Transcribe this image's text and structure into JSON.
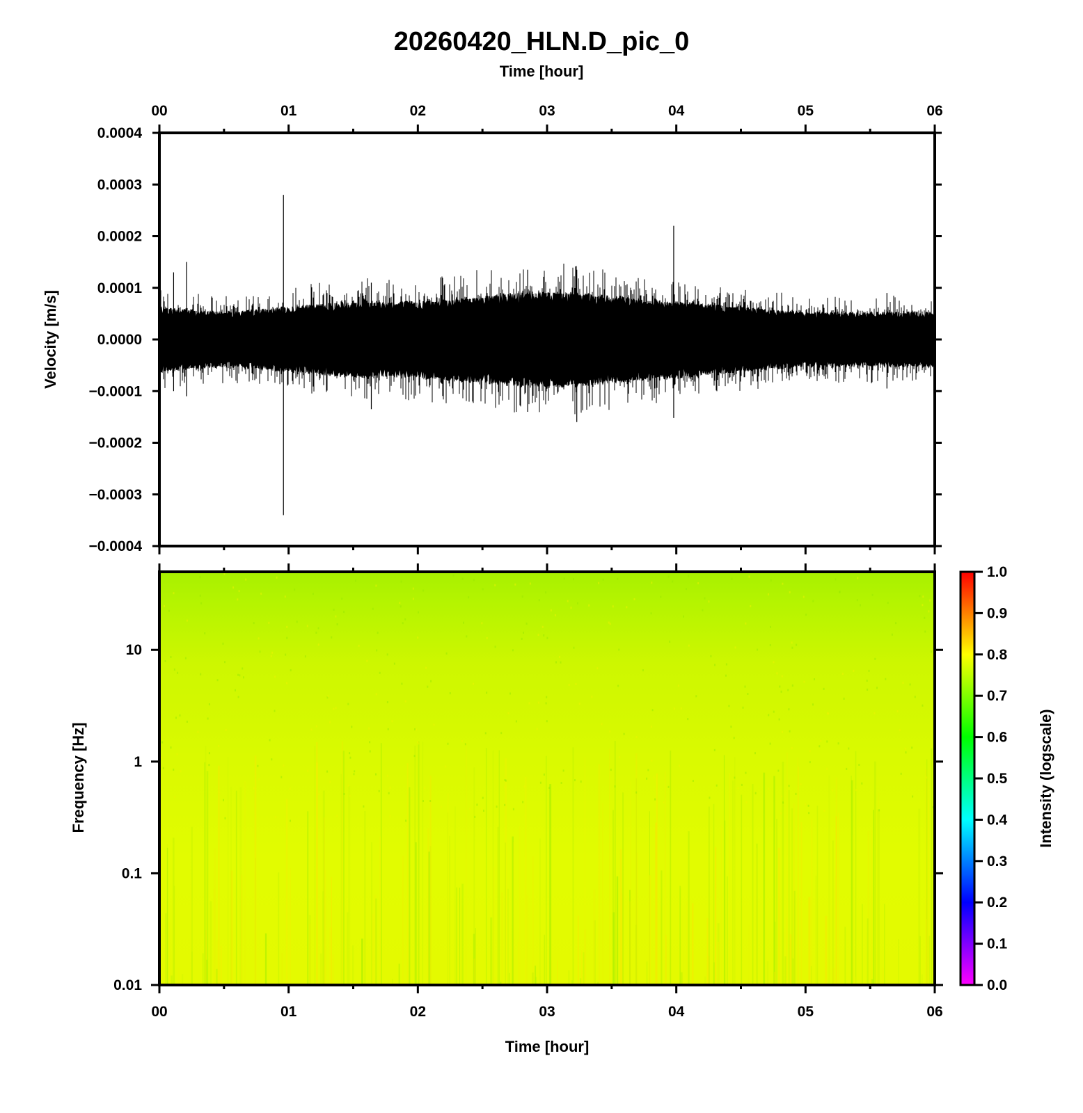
{
  "chart_data": [
    {
      "type": "line",
      "panel": "waveform",
      "title": "20260420_HLN.D_pic_0",
      "xlabel": "Time [hour]",
      "ylabel": "Velocity [m/s]",
      "xlim": [
        0,
        6
      ],
      "ylim": [
        -0.0004,
        0.0004
      ],
      "x_ticks": [
        "00",
        "01",
        "02",
        "03",
        "04",
        "05",
        "06"
      ],
      "y_ticks": [
        "0.0004",
        "0.0003",
        "0.0002",
        "0.0001",
        "0.0000",
        "−0.0001",
        "−0.0002",
        "−0.0003",
        "−0.0004"
      ],
      "envelope": {
        "x": [
          0.0,
          0.5,
          1.0,
          1.5,
          2.0,
          2.5,
          3.0,
          3.5,
          4.0,
          4.5,
          5.0,
          5.5,
          6.0
        ],
        "amplitude": [
          6e-05,
          5e-05,
          6e-05,
          7e-05,
          7e-05,
          8e-05,
          9e-05,
          8e-05,
          7e-05,
          6e-05,
          5e-05,
          5e-05,
          5e-05
        ]
      },
      "spikes": [
        {
          "x": 0.96,
          "max": 0.00028,
          "min": -0.00034
        },
        {
          "x": 3.98,
          "max": 0.00022,
          "min": -0.000152
        },
        {
          "x": 0.21,
          "max": 0.00015,
          "min": -0.00011
        },
        {
          "x": 3.23,
          "max": 0.000135,
          "min": -0.00016
        },
        {
          "x": 2.85,
          "max": 0.000135,
          "min": -0.00014
        },
        {
          "x": 1.64,
          "max": 0.00011,
          "min": -0.000135
        },
        {
          "x": 5.63,
          "max": 9e-05,
          "min": -9.5e-05
        },
        {
          "x": 0.11,
          "max": 0.00013,
          "min": -0.0001
        }
      ],
      "line_color": "#000000"
    },
    {
      "type": "heatmap",
      "panel": "spectrogram",
      "xlabel": "Time [hour]",
      "ylabel": "Frequency [Hz]",
      "xlim": [
        0,
        6
      ],
      "ylim": [
        0.01,
        50
      ],
      "yscale": "log",
      "x_ticks": [
        "00",
        "01",
        "02",
        "03",
        "04",
        "05",
        "06"
      ],
      "y_ticks": [
        "10",
        "1",
        "0.1",
        "0.01"
      ],
      "colorbar": {
        "label": "Intensity (logscale)",
        "range": [
          0.0,
          1.0
        ],
        "ticks": [
          "1.0",
          "0.9",
          "0.8",
          "0.7",
          "0.6",
          "0.5",
          "0.4",
          "0.3",
          "0.2",
          "0.1",
          "0.0"
        ],
        "colors": [
          "#ff00ff",
          "#8000ff",
          "#0000ff",
          "#0080ff",
          "#00ffff",
          "#00ff80",
          "#00ff00",
          "#80ff00",
          "#ffff00",
          "#ff8000",
          "#ff0000"
        ]
      },
      "intensity_by_frequency": {
        "frequency": [
          0.01,
          0.1,
          1,
          10,
          50
        ],
        "intensity": [
          0.79,
          0.79,
          0.78,
          0.75,
          0.71
        ]
      }
    }
  ]
}
